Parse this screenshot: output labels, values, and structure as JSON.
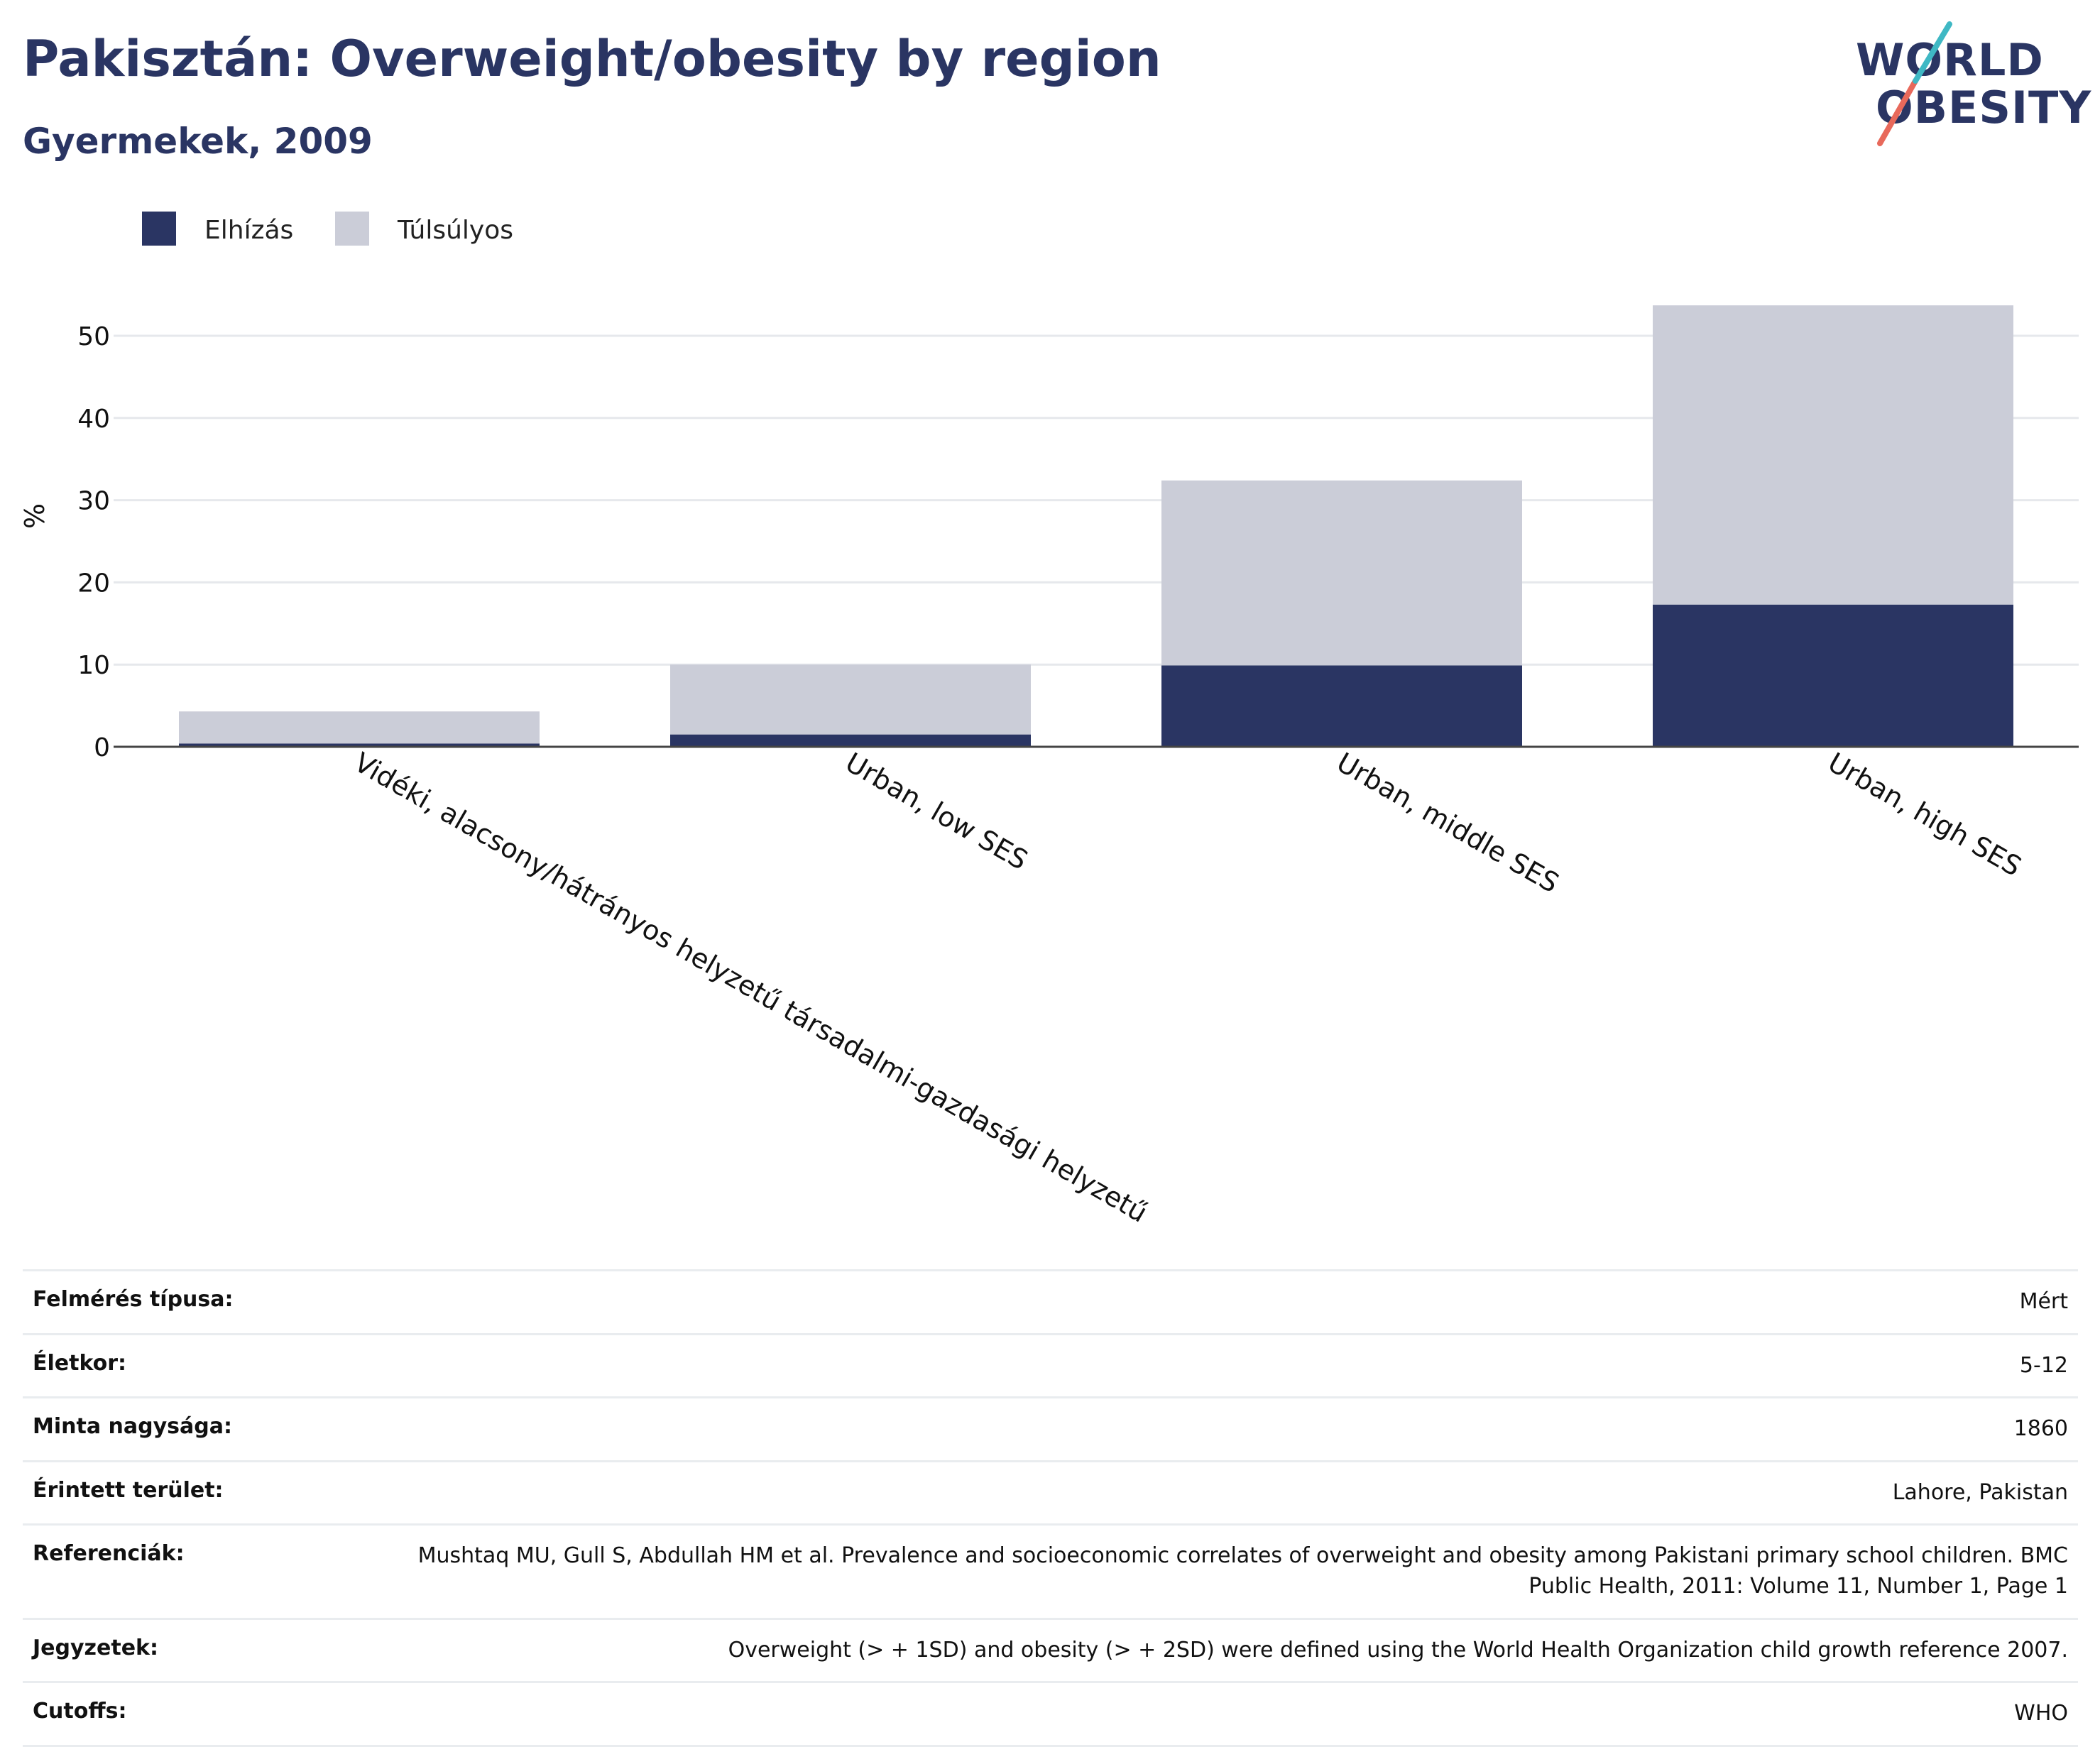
{
  "header": {
    "title": "Pakisztán: Overweight/obesity by region",
    "subtitle": "Gyermekek, 2009"
  },
  "logo": {
    "line1": "WORLD",
    "line2": "OBESITY"
  },
  "chart_data": {
    "type": "bar",
    "stacked": true,
    "categories": [
      "Vidéki, alacsony/hátrányos helyzetű társadalmi-gazdasági helyzetű",
      "Urban, low SES",
      "Urban, middle SES",
      "Urban, high SES"
    ],
    "series": [
      {
        "name": "Elhízás",
        "color": "#2a3563",
        "values": [
          0.4,
          1.5,
          9.9,
          17.3
        ]
      },
      {
        "name": "Túlsúlyos",
        "color": "#cbcdd8",
        "values": [
          3.9,
          8.5,
          22.5,
          36.4
        ]
      }
    ],
    "ylabel": "%",
    "ylim": [
      0,
      56
    ],
    "yticks": [
      0,
      10,
      20,
      30,
      40,
      50
    ],
    "grid": true,
    "legend_position": "top-left"
  },
  "meta": [
    {
      "label": "Felmérés típusa:",
      "value": "Mért"
    },
    {
      "label": "Életkor:",
      "value": "5-12"
    },
    {
      "label": "Minta nagysága:",
      "value": "1860"
    },
    {
      "label": "Érintett terület:",
      "value": "Lahore, Pakistan"
    },
    {
      "label": "Referenciák:",
      "value": "Mushtaq MU, Gull S, Abdullah HM et al. Prevalence and socioeconomic correlates of overweight and obesity among Pakistani primary school children. BMC Public Health, 2011: Volume 11, Number 1, Page 1"
    },
    {
      "label": "Jegyzetek:",
      "value": "Overweight (> + 1SD) and obesity (> + 2SD) were defined using the World Health Organization child growth reference 2007."
    },
    {
      "label": "Cutoffs:",
      "value": "WHO"
    }
  ]
}
